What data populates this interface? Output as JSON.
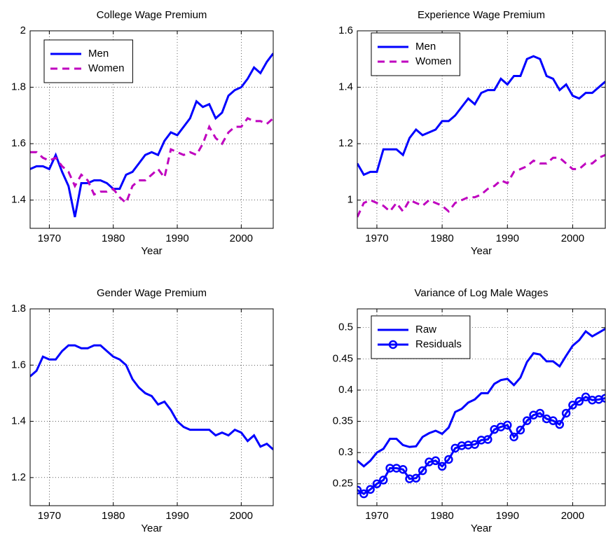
{
  "chart_data": [
    {
      "type": "line",
      "title": "College Wage Premium",
      "xlabel": "Year",
      "x": [
        1967,
        1968,
        1969,
        1970,
        1971,
        1972,
        1973,
        1974,
        1975,
        1976,
        1977,
        1978,
        1979,
        1980,
        1981,
        1982,
        1983,
        1984,
        1985,
        1986,
        1987,
        1988,
        1989,
        1990,
        1991,
        1992,
        1993,
        1994,
        1995,
        1996,
        1997,
        1998,
        1999,
        2000,
        2001,
        2002,
        2003,
        2004,
        2005
      ],
      "xlim": [
        1967,
        2005
      ],
      "xticks": [
        1970,
        1980,
        1990,
        2000
      ],
      "ylim": [
        1.3,
        2.0
      ],
      "yticks": [
        1.4,
        1.6,
        1.8,
        2
      ],
      "grid": true,
      "legend": "upper left",
      "series": [
        {
          "name": "Men",
          "color": "#0000ff",
          "linestyle": "solid",
          "values": [
            1.51,
            1.52,
            1.52,
            1.51,
            1.56,
            1.5,
            1.45,
            1.34,
            1.46,
            1.46,
            1.47,
            1.47,
            1.46,
            1.44,
            1.44,
            1.49,
            1.5,
            1.53,
            1.56,
            1.57,
            1.56,
            1.61,
            1.64,
            1.63,
            1.66,
            1.69,
            1.75,
            1.73,
            1.74,
            1.69,
            1.71,
            1.77,
            1.79,
            1.8,
            1.83,
            1.87,
            1.85,
            1.89,
            1.92
          ]
        },
        {
          "name": "Women",
          "color": "#bf00bf",
          "linestyle": "dashed",
          "values": [
            1.57,
            1.57,
            1.55,
            1.54,
            1.55,
            1.52,
            1.5,
            1.45,
            1.49,
            1.47,
            1.42,
            1.43,
            1.43,
            1.44,
            1.41,
            1.39,
            1.45,
            1.47,
            1.47,
            1.49,
            1.51,
            1.48,
            1.58,
            1.57,
            1.56,
            1.57,
            1.56,
            1.6,
            1.66,
            1.62,
            1.6,
            1.64,
            1.66,
            1.66,
            1.69,
            1.68,
            1.68,
            1.67,
            1.69
          ]
        }
      ]
    },
    {
      "type": "line",
      "title": "Experience Wage Premium",
      "xlabel": "Year",
      "x": [
        1967,
        1968,
        1969,
        1970,
        1971,
        1972,
        1973,
        1974,
        1975,
        1976,
        1977,
        1978,
        1979,
        1980,
        1981,
        1982,
        1983,
        1984,
        1985,
        1986,
        1987,
        1988,
        1989,
        1990,
        1991,
        1992,
        1993,
        1994,
        1995,
        1996,
        1997,
        1998,
        1999,
        2000,
        2001,
        2002,
        2003,
        2004,
        2005
      ],
      "xlim": [
        1967,
        2005
      ],
      "xticks": [
        1970,
        1980,
        1990,
        2000
      ],
      "ylim": [
        0.9,
        1.6
      ],
      "yticks": [
        1,
        1.2,
        1.4,
        1.6
      ],
      "grid": true,
      "legend": "upper left",
      "series": [
        {
          "name": "Men",
          "color": "#0000ff",
          "linestyle": "solid",
          "values": [
            1.13,
            1.09,
            1.1,
            1.1,
            1.18,
            1.18,
            1.18,
            1.16,
            1.22,
            1.25,
            1.23,
            1.24,
            1.25,
            1.28,
            1.28,
            1.3,
            1.33,
            1.36,
            1.34,
            1.38,
            1.39,
            1.39,
            1.43,
            1.41,
            1.44,
            1.44,
            1.5,
            1.51,
            1.5,
            1.44,
            1.43,
            1.39,
            1.41,
            1.37,
            1.36,
            1.38,
            1.38,
            1.4,
            1.42
          ]
        },
        {
          "name": "Women",
          "color": "#bf00bf",
          "linestyle": "dashed",
          "values": [
            0.94,
            0.99,
            1.0,
            0.99,
            0.98,
            0.96,
            0.99,
            0.96,
            1.0,
            0.99,
            0.98,
            1.0,
            0.99,
            0.98,
            0.96,
            0.99,
            1.0,
            1.01,
            1.01,
            1.02,
            1.04,
            1.05,
            1.07,
            1.06,
            1.1,
            1.11,
            1.12,
            1.14,
            1.13,
            1.13,
            1.15,
            1.15,
            1.13,
            1.11,
            1.11,
            1.13,
            1.13,
            1.15,
            1.16
          ]
        }
      ]
    },
    {
      "type": "line",
      "title": "Gender Wage Premium",
      "xlabel": "Year",
      "x": [
        1967,
        1968,
        1969,
        1970,
        1971,
        1972,
        1973,
        1974,
        1975,
        1976,
        1977,
        1978,
        1979,
        1980,
        1981,
        1982,
        1983,
        1984,
        1985,
        1986,
        1987,
        1988,
        1989,
        1990,
        1991,
        1992,
        1993,
        1994,
        1995,
        1996,
        1997,
        1998,
        1999,
        2000,
        2001,
        2002,
        2003,
        2004,
        2005
      ],
      "xlim": [
        1967,
        2005
      ],
      "xticks": [
        1970,
        1980,
        1990,
        2000
      ],
      "ylim": [
        1.1,
        1.8
      ],
      "yticks": [
        1.2,
        1.4,
        1.6,
        1.8
      ],
      "grid": true,
      "series": [
        {
          "color": "#0000ff",
          "linestyle": "solid",
          "values": [
            1.56,
            1.58,
            1.63,
            1.62,
            1.62,
            1.65,
            1.67,
            1.67,
            1.66,
            1.66,
            1.67,
            1.67,
            1.65,
            1.63,
            1.62,
            1.6,
            1.55,
            1.52,
            1.5,
            1.49,
            1.46,
            1.47,
            1.44,
            1.4,
            1.38,
            1.37,
            1.37,
            1.37,
            1.37,
            1.35,
            1.36,
            1.35,
            1.37,
            1.36,
            1.33,
            1.35,
            1.31,
            1.32,
            1.3
          ]
        }
      ]
    },
    {
      "type": "line",
      "title": "Variance of Log Male Wages",
      "xlabel": "Year",
      "x": [
        1967,
        1968,
        1969,
        1970,
        1971,
        1972,
        1973,
        1974,
        1975,
        1976,
        1977,
        1978,
        1979,
        1980,
        1981,
        1982,
        1983,
        1984,
        1985,
        1986,
        1987,
        1988,
        1989,
        1990,
        1991,
        1992,
        1993,
        1994,
        1995,
        1996,
        1997,
        1998,
        1999,
        2000,
        2001,
        2002,
        2003,
        2004,
        2005
      ],
      "xlim": [
        1967,
        2005
      ],
      "xticks": [
        1970,
        1980,
        1990,
        2000
      ],
      "ylim": [
        0.215,
        0.53
      ],
      "yticks": [
        0.25,
        0.3,
        0.35,
        0.4,
        0.45,
        0.5
      ],
      "grid": true,
      "legend": "upper left",
      "series": [
        {
          "name": "Raw",
          "color": "#0000ff",
          "linestyle": "solid",
          "values": [
            0.287,
            0.278,
            0.287,
            0.3,
            0.306,
            0.322,
            0.322,
            0.312,
            0.309,
            0.31,
            0.325,
            0.331,
            0.335,
            0.33,
            0.34,
            0.365,
            0.37,
            0.38,
            0.385,
            0.395,
            0.395,
            0.41,
            0.416,
            0.418,
            0.408,
            0.42,
            0.445,
            0.459,
            0.457,
            0.446,
            0.446,
            0.438,
            0.455,
            0.471,
            0.48,
            0.494,
            0.486,
            0.492,
            0.498
          ]
        },
        {
          "name": "Residuals",
          "color": "#0000ff",
          "linestyle": "solid",
          "marker": "o",
          "values": [
            0.24,
            0.234,
            0.241,
            0.25,
            0.256,
            0.275,
            0.275,
            0.273,
            0.258,
            0.259,
            0.271,
            0.285,
            0.287,
            0.278,
            0.289,
            0.307,
            0.311,
            0.312,
            0.313,
            0.32,
            0.321,
            0.337,
            0.341,
            0.344,
            0.325,
            0.336,
            0.351,
            0.36,
            0.363,
            0.354,
            0.351,
            0.345,
            0.363,
            0.376,
            0.382,
            0.389,
            0.384,
            0.385,
            0.387
          ]
        }
      ]
    }
  ]
}
